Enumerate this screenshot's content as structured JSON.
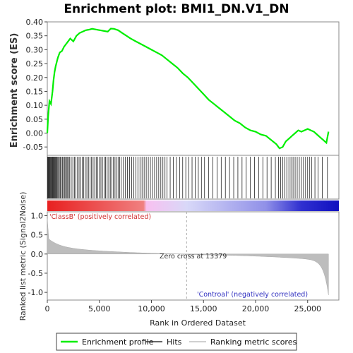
{
  "chart_data": {
    "type": "line",
    "title": "Enrichment plot: BMI1_DN.V1_DN",
    "ylabel_top": "Enrichment score (ES)",
    "ylabel_bottom": "Ranked list metric (Signal2Noise)",
    "xlabel": "Rank in Ordered Dataset",
    "xlim": [
      0,
      28000
    ],
    "x_ticks": [
      "0",
      "5,000",
      "10,000",
      "15,000",
      "20,000",
      "25,000"
    ],
    "x_tick_values": [
      0,
      5000,
      10000,
      15000,
      20000,
      25000
    ],
    "es_ylim": [
      -0.08,
      0.4
    ],
    "es_ticks": [
      "0.40",
      "0.35",
      "0.30",
      "0.25",
      "0.20",
      "0.15",
      "0.10",
      "0.05",
      "0.00",
      "-0.05"
    ],
    "es_tick_values": [
      0.4,
      0.35,
      0.3,
      0.25,
      0.2,
      0.15,
      0.1,
      0.05,
      0.0,
      -0.05
    ],
    "metric_ylim": [
      -1.2,
      1.1
    ],
    "metric_ticks": [
      "1.0",
      "0.5",
      "0.0",
      "-0.5",
      "-1.0"
    ],
    "metric_tick_values": [
      1.0,
      0.5,
      0.0,
      -0.5,
      -1.0
    ],
    "series": [
      {
        "name": "Enrichment profile",
        "color": "#00ee00",
        "x": [
          0,
          80,
          200,
          350,
          500,
          600,
          700,
          800,
          900,
          1000,
          1100,
          1200,
          1400,
          1600,
          1800,
          2000,
          2200,
          2500,
          2800,
          3100,
          3400,
          3700,
          4000,
          4300,
          4600,
          4900,
          5200,
          5500,
          5800,
          6100,
          6400,
          6800,
          7200,
          7600,
          8000,
          8500,
          9000,
          9500,
          10000,
          10500,
          11000,
          11500,
          12000,
          12500,
          13000,
          13500,
          14000,
          14500,
          15000,
          15500,
          16000,
          16500,
          17000,
          17500,
          18000,
          18500,
          19000,
          19500,
          20000,
          20500,
          21000,
          21500,
          22000,
          22300,
          22600,
          22900,
          23200,
          23500,
          23800,
          24100,
          24400,
          24700,
          25000,
          25300,
          25600,
          25900,
          26200,
          26500,
          26800,
          27000
        ],
        "y": [
          0.0,
          0.06,
          0.115,
          0.105,
          0.15,
          0.19,
          0.22,
          0.24,
          0.255,
          0.27,
          0.28,
          0.29,
          0.295,
          0.31,
          0.32,
          0.33,
          0.34,
          0.33,
          0.35,
          0.36,
          0.365,
          0.37,
          0.372,
          0.375,
          0.373,
          0.371,
          0.369,
          0.367,
          0.365,
          0.376,
          0.375,
          0.37,
          0.36,
          0.35,
          0.34,
          0.33,
          0.32,
          0.31,
          0.3,
          0.29,
          0.28,
          0.265,
          0.25,
          0.235,
          0.215,
          0.2,
          0.18,
          0.16,
          0.14,
          0.12,
          0.105,
          0.09,
          0.075,
          0.06,
          0.045,
          0.035,
          0.02,
          0.01,
          0.005,
          -0.005,
          -0.01,
          -0.025,
          -0.04,
          -0.055,
          -0.05,
          -0.03,
          -0.02,
          -0.01,
          0.0,
          0.01,
          0.005,
          0.01,
          0.015,
          0.01,
          0.005,
          -0.005,
          -0.015,
          -0.025,
          -0.035,
          0.005
        ]
      }
    ],
    "hits_positions": [
      30,
      60,
      100,
      140,
      190,
      240,
      300,
      360,
      420,
      480,
      540,
      600,
      660,
      720,
      780,
      850,
      920,
      1000,
      1080,
      1160,
      1250,
      1350,
      1450,
      1550,
      1650,
      1750,
      1850,
      1950,
      2050,
      2150,
      2300,
      2450,
      2600,
      2750,
      2900,
      3050,
      3200,
      3350,
      3500,
      3650,
      3800,
      3950,
      4100,
      4250,
      4400,
      4550,
      4700,
      4850,
      5000,
      5150,
      5300,
      5450,
      5600,
      5750,
      5900,
      6050,
      6200,
      6350,
      6500,
      6650,
      6800,
      6950,
      7100,
      7300,
      7500,
      7700,
      7900,
      8100,
      8300,
      8500,
      8700,
      8900,
      9100,
      9300,
      9500,
      9700,
      9900,
      10100,
      10300,
      10500,
      10700,
      10900,
      11100,
      11300,
      11500,
      11800,
      12100,
      12400,
      12700,
      13000,
      13300,
      13600,
      13900,
      14200,
      14500,
      14800,
      15100,
      15500,
      15900,
      16300,
      16700,
      17100,
      17500,
      17900,
      18300,
      18700,
      19100,
      19500,
      19900,
      20300,
      20700,
      21100,
      21500,
      21900,
      22200,
      22400,
      22600,
      22800,
      23000,
      23200,
      23400,
      23600,
      23800,
      24000,
      24200,
      24400,
      24600,
      24800,
      25000,
      25200,
      25400,
      25700,
      26000,
      26400,
      26900
    ],
    "gradient_colors": [
      "#e82020",
      "#f08080",
      "#f8c0f0",
      "#d8d8f8",
      "#9090e8",
      "#3030d0",
      "#1010c0"
    ],
    "zero_cross_rank": 13379,
    "annotations": {
      "positive": "'ClassB' (positively correlated)",
      "zero_cross": "Zero cross at 13379",
      "negative": "'Controal' (negatively correlated)"
    },
    "legend": [
      {
        "label": "Enrichment profile",
        "color": "#00ee00"
      },
      {
        "label": "Hits",
        "color": "#333333"
      },
      {
        "label": "Ranking metric scores",
        "color": "#c0c0c0"
      }
    ]
  }
}
